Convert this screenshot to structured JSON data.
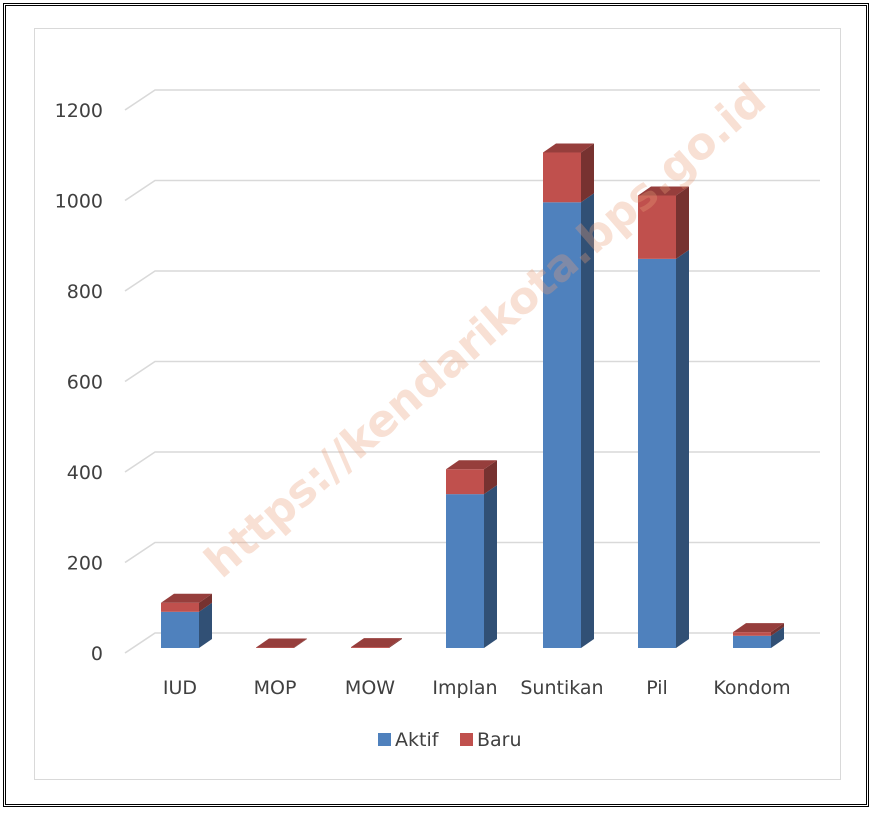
{
  "chart_data": {
    "type": "bar",
    "stacked": true,
    "three_d": true,
    "title": "",
    "xlabel": "",
    "ylabel": "",
    "categories": [
      "IUD",
      "MOP",
      "MOW",
      "Implan",
      "Suntikan",
      "Pil",
      "Kondom"
    ],
    "series": [
      {
        "name": "Aktif",
        "color": "#4F81BD",
        "values": [
          80,
          0,
          0,
          340,
          985,
          860,
          27
        ]
      },
      {
        "name": "Baru",
        "color": "#C0504D",
        "values": [
          20,
          1,
          2,
          55,
          110,
          140,
          8
        ]
      }
    ],
    "ylim": [
      0,
      1200
    ],
    "yticks": [
      "0",
      "200",
      "400",
      "600",
      "800",
      "1000",
      "1200"
    ],
    "grid": true,
    "legend_position": "bottom"
  },
  "watermark": "https://kendarikota.bps.go.id"
}
